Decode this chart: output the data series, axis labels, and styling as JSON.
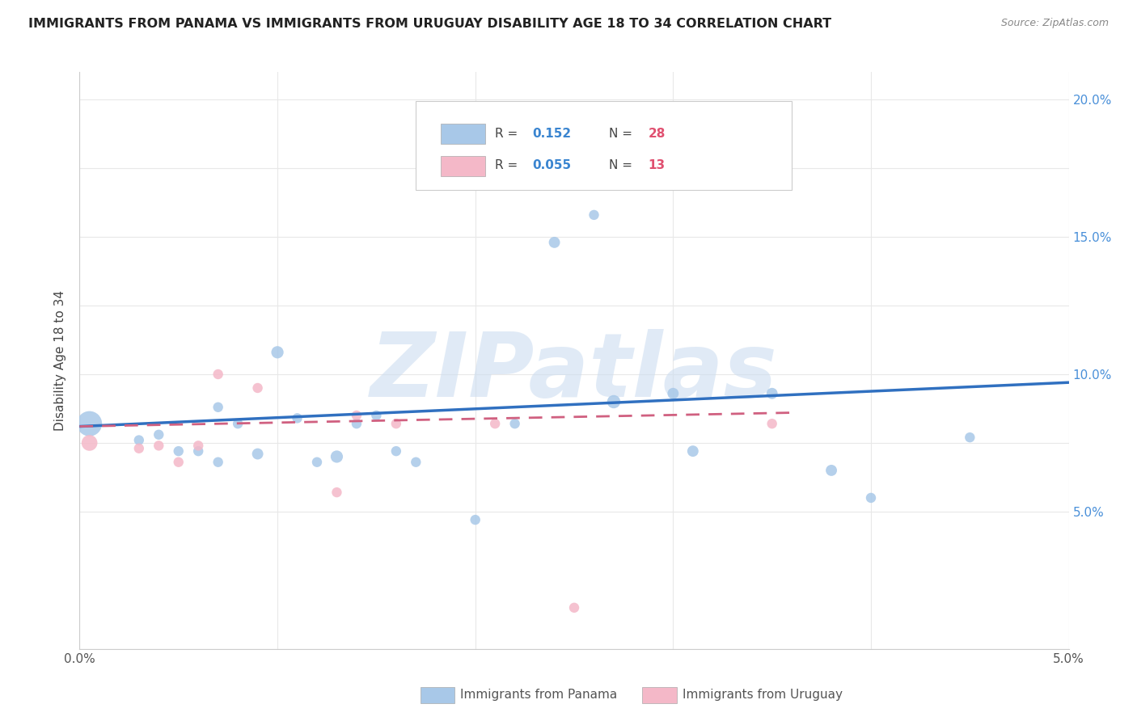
{
  "title": "IMMIGRANTS FROM PANAMA VS IMMIGRANTS FROM URUGUAY DISABILITY AGE 18 TO 34 CORRELATION CHART",
  "source": "Source: ZipAtlas.com",
  "ylabel": "Disability Age 18 to 34",
  "xlim": [
    0.0,
    0.05
  ],
  "ylim": [
    0.0,
    0.21
  ],
  "panama_R": 0.152,
  "panama_N": 28,
  "uruguay_R": 0.055,
  "uruguay_N": 13,
  "panama_color": "#a8c8e8",
  "uruguay_color": "#f4b8c8",
  "panama_line_color": "#3070c0",
  "uruguay_line_color": "#d06080",
  "panama_scatter_x": [
    0.0005,
    0.003,
    0.004,
    0.005,
    0.006,
    0.007,
    0.007,
    0.008,
    0.009,
    0.01,
    0.011,
    0.012,
    0.013,
    0.014,
    0.015,
    0.016,
    0.017,
    0.02,
    0.022,
    0.024,
    0.026,
    0.027,
    0.03,
    0.031,
    0.035,
    0.038,
    0.04,
    0.045
  ],
  "panama_scatter_y": [
    0.082,
    0.076,
    0.078,
    0.072,
    0.072,
    0.088,
    0.068,
    0.082,
    0.071,
    0.108,
    0.084,
    0.068,
    0.07,
    0.082,
    0.085,
    0.072,
    0.068,
    0.047,
    0.082,
    0.148,
    0.158,
    0.09,
    0.093,
    0.072,
    0.093,
    0.065,
    0.055,
    0.077
  ],
  "panama_scatter_size": [
    500,
    80,
    80,
    80,
    80,
    80,
    80,
    80,
    100,
    120,
    80,
    80,
    120,
    80,
    80,
    80,
    80,
    80,
    80,
    100,
    80,
    140,
    100,
    100,
    100,
    100,
    80,
    80
  ],
  "uruguay_scatter_x": [
    0.0005,
    0.003,
    0.004,
    0.005,
    0.006,
    0.007,
    0.009,
    0.013,
    0.014,
    0.016,
    0.021,
    0.035,
    0.025
  ],
  "uruguay_scatter_y": [
    0.075,
    0.073,
    0.074,
    0.068,
    0.074,
    0.1,
    0.095,
    0.057,
    0.085,
    0.082,
    0.082,
    0.082,
    0.015
  ],
  "uruguay_scatter_size": [
    200,
    80,
    80,
    80,
    80,
    80,
    80,
    80,
    80,
    80,
    80,
    80,
    80
  ],
  "panama_trendline_x": [
    0.0,
    0.05
  ],
  "panama_trendline_y": [
    0.081,
    0.097
  ],
  "uruguay_trendline_x": [
    0.0,
    0.036
  ],
  "uruguay_trendline_y": [
    0.081,
    0.086
  ],
  "watermark": "ZIPatlas",
  "background_color": "#ffffff",
  "grid_color": "#e8e8e8",
  "ytick_positions": [
    0.0,
    0.05,
    0.075,
    0.1,
    0.125,
    0.15,
    0.175,
    0.2
  ],
  "ytick_labels": [
    "",
    "5.0%",
    "",
    "10.0%",
    "",
    "15.0%",
    "",
    "20.0%"
  ],
  "xtick_positions": [
    0.0,
    0.01,
    0.02,
    0.03,
    0.04,
    0.05
  ],
  "xtick_labels": [
    "0.0%",
    "",
    "",
    "",
    "",
    "5.0%"
  ]
}
